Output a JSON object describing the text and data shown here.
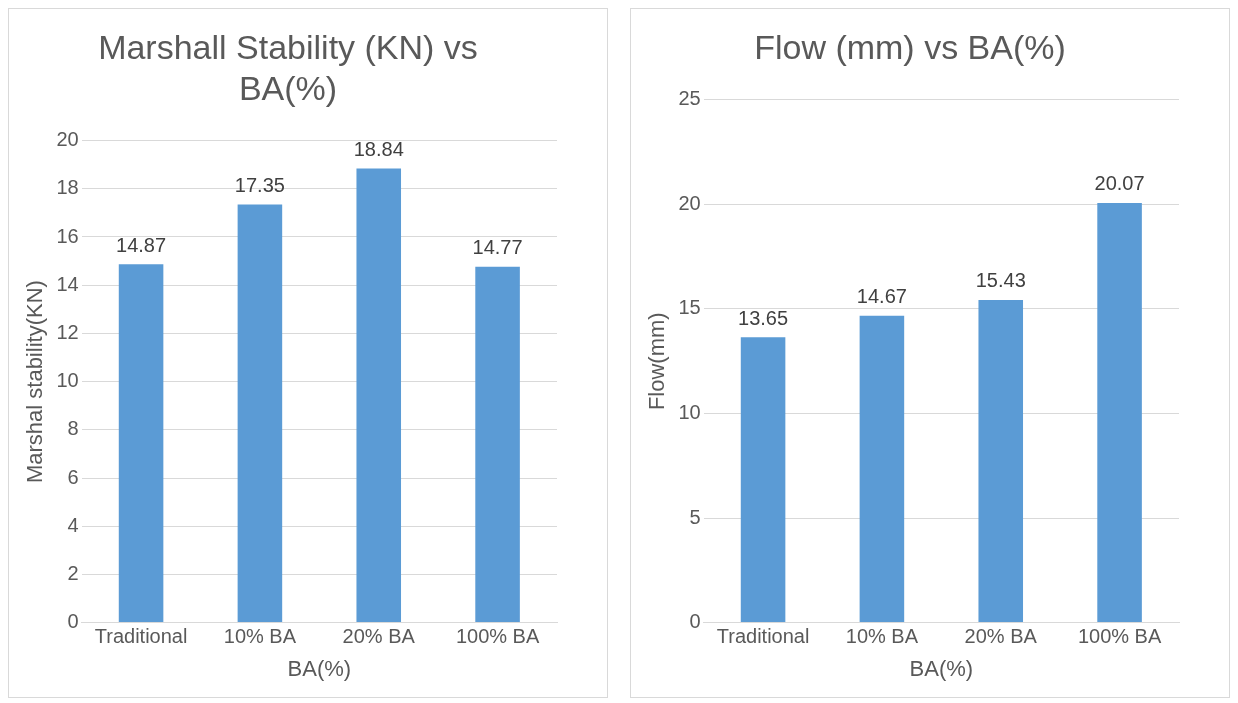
{
  "chart_data": [
    {
      "type": "bar",
      "title": "Marshall Stability (KN) vs BA(%)",
      "xlabel": "BA(%)",
      "ylabel": "Marshal stability(KN)",
      "categories": [
        "Traditional",
        "10% BA",
        "20% BA",
        "100% BA"
      ],
      "values": [
        14.87,
        17.35,
        18.84,
        14.77
      ],
      "color": "#5b9bd5",
      "ylim": [
        0,
        20
      ],
      "yticks": [
        0,
        2,
        4,
        6,
        8,
        10,
        12,
        14,
        16,
        18,
        20
      ],
      "grid": "y",
      "data_labels": true,
      "legend": false
    },
    {
      "type": "bar",
      "title": "Flow (mm) vs BA(%)",
      "xlabel": "BA(%)",
      "ylabel": "Flow(mm)",
      "categories": [
        "Traditional",
        "10% BA",
        "20% BA",
        "100% BA"
      ],
      "values": [
        13.65,
        14.67,
        15.43,
        20.07
      ],
      "color": "#5b9bd5",
      "ylim": [
        0,
        25
      ],
      "yticks": [
        0,
        5,
        10,
        15,
        20,
        25
      ],
      "grid": "y",
      "data_labels": true,
      "legend": false
    }
  ]
}
